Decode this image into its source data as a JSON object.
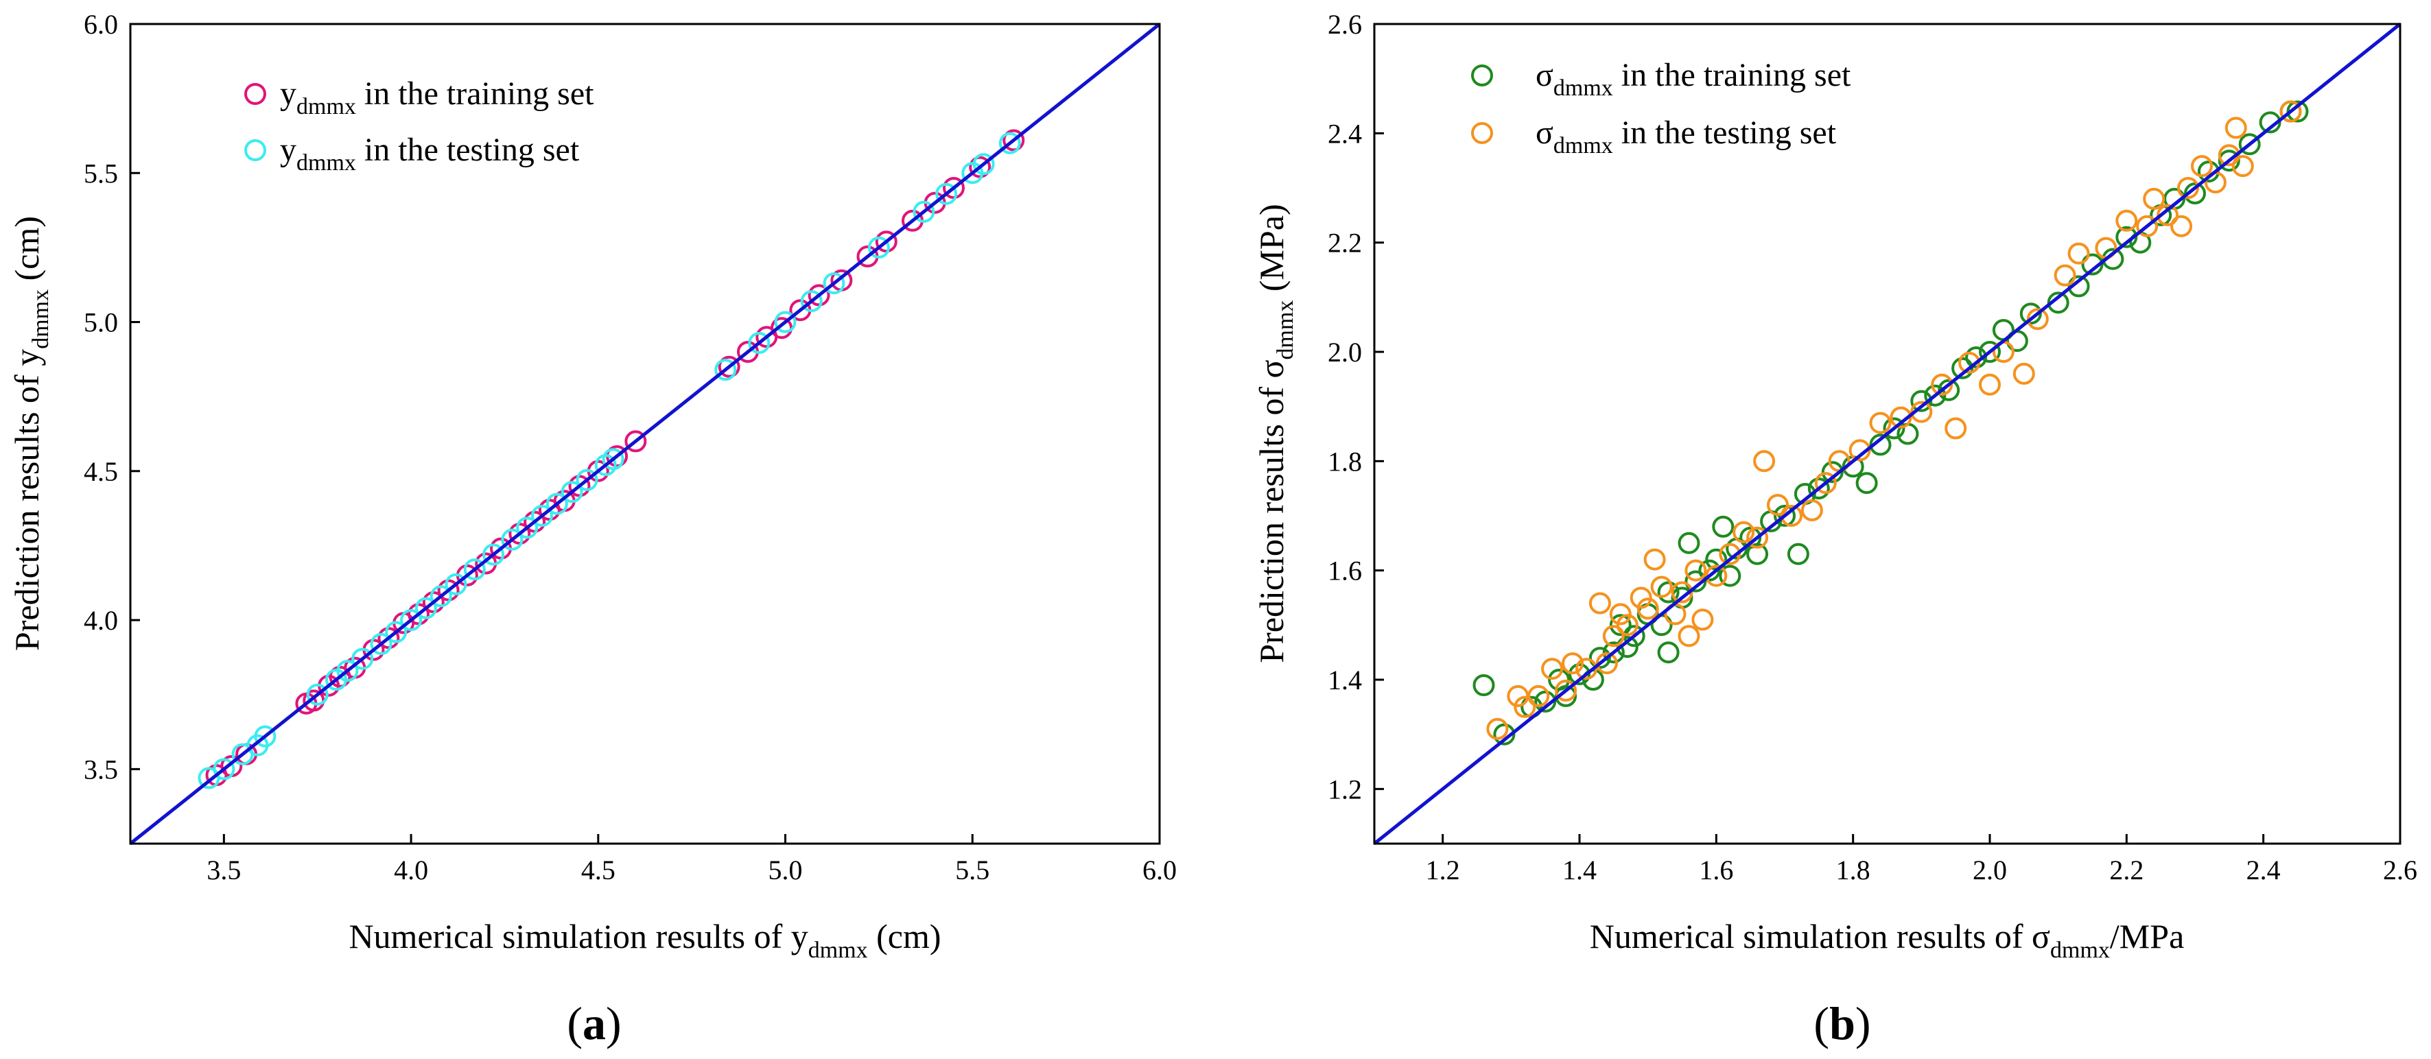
{
  "figure": {
    "panels": [
      {
        "label_open": "(",
        "label_letter": "a",
        "label_close": ")",
        "xlabel_pre": "Numerical simulation results of y",
        "xlabel_sub": "dmmx",
        "xlabel_post": " (cm)",
        "ylabel_pre": "Prediction results of y",
        "ylabel_sub": "dmmx",
        "ylabel_post": " (cm)"
      },
      {
        "label_open": "(",
        "label_letter": "b",
        "label_close": ")",
        "xlabel_pre": "Numerical simulation results of σ",
        "xlabel_sub": "dmmx",
        "xlabel_post": "/MPa",
        "ylabel_pre": "Prediction results of σ",
        "ylabel_sub": "dmmx",
        "ylabel_post": " (MPa)"
      }
    ]
  },
  "chart_data": [
    {
      "type": "scatter",
      "title": "",
      "xlabel": "Numerical simulation results of y_dmmx (cm)",
      "ylabel": "Prediction results of y_dmmx (cm)",
      "xlim": [
        3.25,
        6.0
      ],
      "ylim": [
        3.25,
        6.0
      ],
      "xticks": [
        "3.5",
        "4.0",
        "4.5",
        "5.0",
        "5.5",
        "6.0"
      ],
      "yticks": [
        "3.5",
        "4.0",
        "4.5",
        "5.0",
        "5.5",
        "6.0"
      ],
      "reference_line": {
        "from": [
          3.25,
          3.25
        ],
        "to": [
          6.0,
          6.0
        ],
        "color": "#1212d0"
      },
      "legend_position": "top-left",
      "series": [
        {
          "name_symbol": "y",
          "name_sub": "dmmx",
          "name_suffix": " in the training set",
          "color": "#e0157a",
          "points": [
            [
              3.48,
              3.48
            ],
            [
              3.52,
              3.51
            ],
            [
              3.56,
              3.55
            ],
            [
              3.72,
              3.72
            ],
            [
              3.74,
              3.73
            ],
            [
              3.78,
              3.78
            ],
            [
              3.81,
              3.81
            ],
            [
              3.85,
              3.84
            ],
            [
              3.9,
              3.9
            ],
            [
              3.94,
              3.94
            ],
            [
              3.98,
              3.99
            ],
            [
              4.02,
              4.02
            ],
            [
              4.06,
              4.06
            ],
            [
              4.1,
              4.1
            ],
            [
              4.15,
              4.15
            ],
            [
              4.2,
              4.19
            ],
            [
              4.24,
              4.24
            ],
            [
              4.29,
              4.29
            ],
            [
              4.33,
              4.33
            ],
            [
              4.37,
              4.37
            ],
            [
              4.41,
              4.4
            ],
            [
              4.45,
              4.45
            ],
            [
              4.5,
              4.5
            ],
            [
              4.55,
              4.55
            ],
            [
              4.6,
              4.6
            ],
            [
              4.85,
              4.85
            ],
            [
              4.9,
              4.9
            ],
            [
              4.95,
              4.95
            ],
            [
              4.99,
              4.98
            ],
            [
              5.04,
              5.04
            ],
            [
              5.09,
              5.09
            ],
            [
              5.15,
              5.14
            ],
            [
              5.22,
              5.22
            ],
            [
              5.27,
              5.27
            ],
            [
              5.34,
              5.34
            ],
            [
              5.4,
              5.4
            ],
            [
              5.45,
              5.45
            ],
            [
              5.52,
              5.52
            ],
            [
              5.61,
              5.61
            ]
          ]
        },
        {
          "name_symbol": "y",
          "name_sub": "dmmx",
          "name_suffix": " in the testing set",
          "color": "#3cecf0",
          "points": [
            [
              3.46,
              3.47
            ],
            [
              3.5,
              3.5
            ],
            [
              3.55,
              3.55
            ],
            [
              3.59,
              3.58
            ],
            [
              3.61,
              3.61
            ],
            [
              3.75,
              3.75
            ],
            [
              3.8,
              3.8
            ],
            [
              3.83,
              3.83
            ],
            [
              3.87,
              3.87
            ],
            [
              3.92,
              3.92
            ],
            [
              3.96,
              3.96
            ],
            [
              4.0,
              4.0
            ],
            [
              4.04,
              4.04
            ],
            [
              4.08,
              4.08
            ],
            [
              4.12,
              4.12
            ],
            [
              4.17,
              4.17
            ],
            [
              4.22,
              4.22
            ],
            [
              4.27,
              4.27
            ],
            [
              4.31,
              4.31
            ],
            [
              4.35,
              4.35
            ],
            [
              4.39,
              4.39
            ],
            [
              4.43,
              4.43
            ],
            [
              4.47,
              4.47
            ],
            [
              4.52,
              4.52
            ],
            [
              4.54,
              4.54
            ],
            [
              4.84,
              4.84
            ],
            [
              4.93,
              4.93
            ],
            [
              5.0,
              5.0
            ],
            [
              5.07,
              5.07
            ],
            [
              5.13,
              5.13
            ],
            [
              5.25,
              5.25
            ],
            [
              5.37,
              5.37
            ],
            [
              5.43,
              5.43
            ],
            [
              5.5,
              5.5
            ],
            [
              5.53,
              5.53
            ],
            [
              5.6,
              5.6
            ]
          ]
        }
      ]
    },
    {
      "type": "scatter",
      "title": "",
      "xlabel": "Numerical simulation results of σ_dmmx/MPa",
      "ylabel": "Prediction results of σ_dmmx (MPa)",
      "xlim": [
        1.1,
        2.6
      ],
      "ylim": [
        1.1,
        2.6
      ],
      "xticks": [
        "1.2",
        "1.4",
        "1.6",
        "1.8",
        "2.0",
        "2.2",
        "2.4",
        "2.6"
      ],
      "yticks": [
        "1.2",
        "1.4",
        "1.6",
        "1.8",
        "2.0",
        "2.2",
        "2.4",
        "2.6"
      ],
      "reference_line": {
        "from": [
          1.1,
          1.1
        ],
        "to": [
          2.6,
          2.6
        ],
        "color": "#1212d0"
      },
      "legend_position": "top-left",
      "series": [
        {
          "name_symbol": "σ",
          "name_sub": "dmmx",
          "name_suffix": " in the training set",
          "color": "#1f8a1f",
          "points": [
            [
              1.26,
              1.39
            ],
            [
              1.29,
              1.3
            ],
            [
              1.33,
              1.35
            ],
            [
              1.35,
              1.36
            ],
            [
              1.37,
              1.4
            ],
            [
              1.38,
              1.37
            ],
            [
              1.4,
              1.41
            ],
            [
              1.42,
              1.4
            ],
            [
              1.43,
              1.44
            ],
            [
              1.45,
              1.45
            ],
            [
              1.46,
              1.5
            ],
            [
              1.47,
              1.46
            ],
            [
              1.48,
              1.48
            ],
            [
              1.5,
              1.52
            ],
            [
              1.52,
              1.5
            ],
            [
              1.53,
              1.45
            ],
            [
              1.53,
              1.56
            ],
            [
              1.55,
              1.55
            ],
            [
              1.56,
              1.65
            ],
            [
              1.57,
              1.58
            ],
            [
              1.59,
              1.6
            ],
            [
              1.6,
              1.62
            ],
            [
              1.61,
              1.68
            ],
            [
              1.62,
              1.59
            ],
            [
              1.63,
              1.64
            ],
            [
              1.65,
              1.66
            ],
            [
              1.66,
              1.63
            ],
            [
              1.68,
              1.69
            ],
            [
              1.7,
              1.7
            ],
            [
              1.72,
              1.63
            ],
            [
              1.73,
              1.74
            ],
            [
              1.75,
              1.75
            ],
            [
              1.77,
              1.78
            ],
            [
              1.8,
              1.79
            ],
            [
              1.82,
              1.76
            ],
            [
              1.84,
              1.83
            ],
            [
              1.86,
              1.86
            ],
            [
              1.88,
              1.85
            ],
            [
              1.9,
              1.91
            ],
            [
              1.92,
              1.92
            ],
            [
              1.94,
              1.93
            ],
            [
              1.96,
              1.97
            ],
            [
              1.98,
              1.99
            ],
            [
              2.0,
              2.0
            ],
            [
              2.02,
              2.04
            ],
            [
              2.04,
              2.02
            ],
            [
              2.06,
              2.07
            ],
            [
              2.1,
              2.09
            ],
            [
              2.13,
              2.12
            ],
            [
              2.15,
              2.16
            ],
            [
              2.18,
              2.17
            ],
            [
              2.2,
              2.21
            ],
            [
              2.22,
              2.2
            ],
            [
              2.25,
              2.25
            ],
            [
              2.27,
              2.28
            ],
            [
              2.3,
              2.29
            ],
            [
              2.32,
              2.33
            ],
            [
              2.35,
              2.35
            ],
            [
              2.38,
              2.38
            ],
            [
              2.41,
              2.42
            ],
            [
              2.44,
              2.44
            ],
            [
              2.45,
              2.44
            ]
          ]
        },
        {
          "name_symbol": "σ",
          "name_sub": "dmmx",
          "name_suffix": " in the testing set",
          "color": "#f5921e",
          "points": [
            [
              1.28,
              1.31
            ],
            [
              1.31,
              1.37
            ],
            [
              1.32,
              1.35
            ],
            [
              1.34,
              1.37
            ],
            [
              1.36,
              1.42
            ],
            [
              1.38,
              1.38
            ],
            [
              1.39,
              1.43
            ],
            [
              1.41,
              1.42
            ],
            [
              1.43,
              1.54
            ],
            [
              1.44,
              1.43
            ],
            [
              1.45,
              1.48
            ],
            [
              1.46,
              1.52
            ],
            [
              1.47,
              1.5
            ],
            [
              1.49,
              1.55
            ],
            [
              1.5,
              1.53
            ],
            [
              1.51,
              1.62
            ],
            [
              1.52,
              1.57
            ],
            [
              1.54,
              1.52
            ],
            [
              1.55,
              1.56
            ],
            [
              1.56,
              1.48
            ],
            [
              1.57,
              1.6
            ],
            [
              1.58,
              1.51
            ],
            [
              1.6,
              1.59
            ],
            [
              1.62,
              1.63
            ],
            [
              1.64,
              1.67
            ],
            [
              1.66,
              1.66
            ],
            [
              1.67,
              1.8
            ],
            [
              1.69,
              1.72
            ],
            [
              1.71,
              1.7
            ],
            [
              1.74,
              1.71
            ],
            [
              1.76,
              1.76
            ],
            [
              1.78,
              1.8
            ],
            [
              1.81,
              1.82
            ],
            [
              1.84,
              1.87
            ],
            [
              1.87,
              1.88
            ],
            [
              1.9,
              1.89
            ],
            [
              1.93,
              1.94
            ],
            [
              1.95,
              1.86
            ],
            [
              1.97,
              1.98
            ],
            [
              2.0,
              1.94
            ],
            [
              2.02,
              2.0
            ],
            [
              2.05,
              1.96
            ],
            [
              2.07,
              2.06
            ],
            [
              2.11,
              2.14
            ],
            [
              2.13,
              2.18
            ],
            [
              2.17,
              2.19
            ],
            [
              2.2,
              2.24
            ],
            [
              2.23,
              2.23
            ],
            [
              2.24,
              2.28
            ],
            [
              2.26,
              2.25
            ],
            [
              2.28,
              2.23
            ],
            [
              2.29,
              2.3
            ],
            [
              2.31,
              2.34
            ],
            [
              2.33,
              2.31
            ],
            [
              2.35,
              2.36
            ],
            [
              2.36,
              2.41
            ],
            [
              2.37,
              2.34
            ],
            [
              2.44,
              2.44
            ]
          ]
        }
      ]
    }
  ]
}
